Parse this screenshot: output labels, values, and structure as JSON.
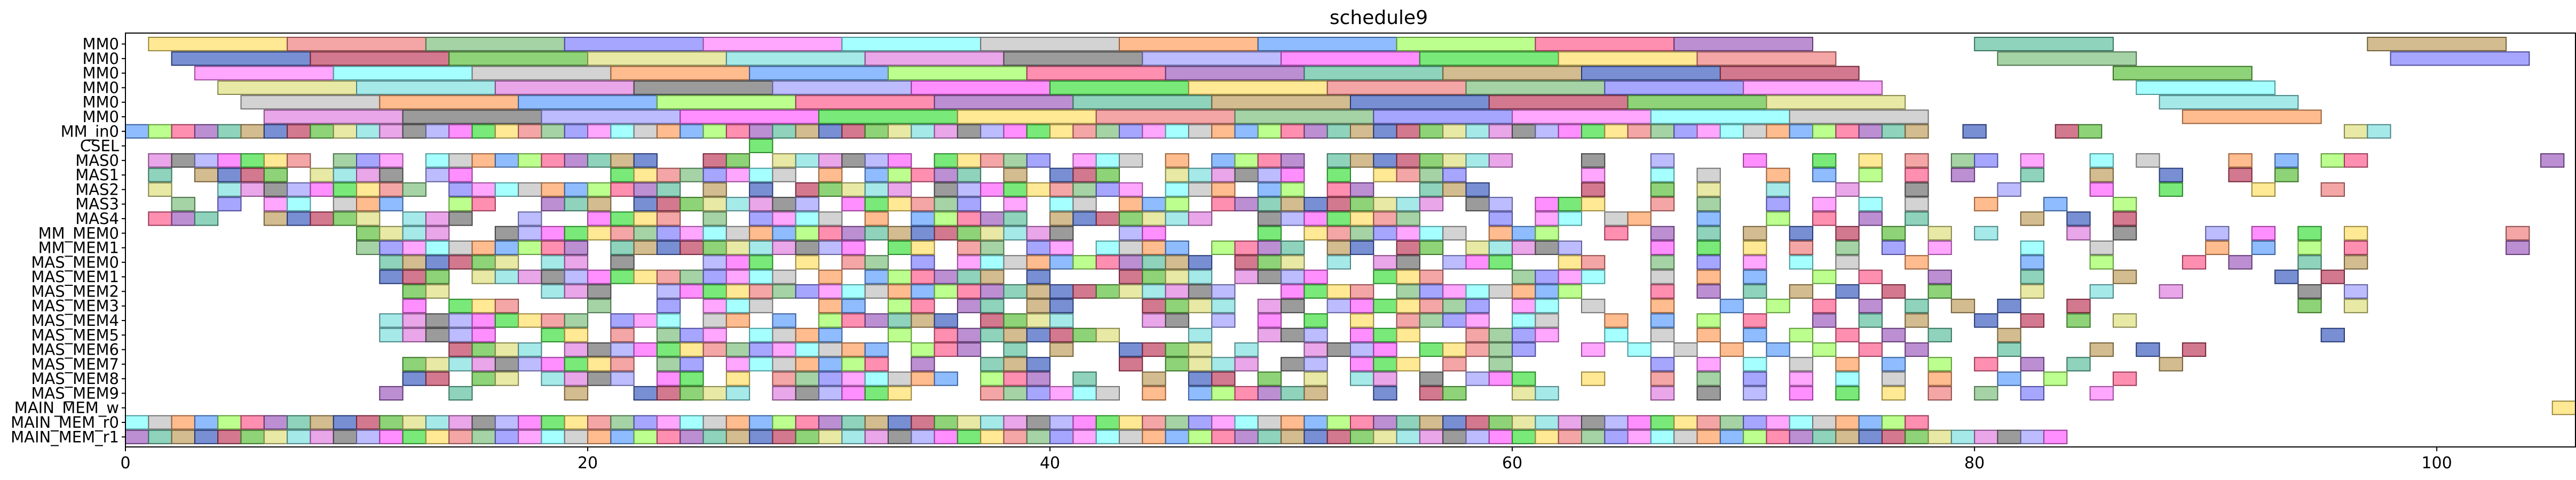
{
  "chart_data": {
    "type": "gantt",
    "title": "schedule9",
    "xlim": [
      0,
      106
    ],
    "xticks": [
      0,
      20,
      40,
      60,
      80,
      100
    ],
    "rows": [
      "MM0",
      "MM0",
      "MM0",
      "MM0",
      "MM0",
      "MM0",
      "MM_in0",
      "CSEL",
      "MAS0",
      "MAS1",
      "MAS2",
      "MAS3",
      "MAS4",
      "MM_MEM0",
      "MM_MEM1",
      "MAS_MEM0",
      "MAS_MEM1",
      "MAS_MEM2",
      "MAS_MEM3",
      "MAS_MEM4",
      "MAS_MEM5",
      "MAS_MEM6",
      "MAS_MEM7",
      "MAS_MEM8",
      "MAS_MEM9",
      "MAIN_MEM_w",
      "MAIN_MEM_r0",
      "MAIN_MEM_r1"
    ],
    "palette": [
      "#ffe066",
      "#f08080",
      "#80c080",
      "#8080ff",
      "#ff80ff",
      "#80ffff",
      "#c0c0c0",
      "#ffa060",
      "#60a0ff",
      "#a0ff60",
      "#ff6090",
      "#a060c0",
      "#60c0a0",
      "#c0a060",
      "#4060c0",
      "#c04060",
      "#60c040",
      "#e0e080",
      "#80e0e0",
      "#e080e0",
      "#707070",
      "#a0a0ff",
      "#ff60ff",
      "#40e040"
    ],
    "tasks": [
      [
        0,
        1,
        7
      ],
      [
        0,
        7,
        13
      ],
      [
        0,
        13,
        19
      ],
      [
        0,
        19,
        25
      ],
      [
        0,
        25,
        31
      ],
      [
        0,
        31,
        37
      ],
      [
        0,
        37,
        43
      ],
      [
        0,
        43,
        49
      ],
      [
        0,
        49,
        55
      ],
      [
        0,
        55,
        61
      ],
      [
        0,
        61,
        67
      ],
      [
        0,
        67,
        73
      ],
      [
        0,
        80,
        86
      ],
      [
        0,
        97,
        103
      ],
      [
        1,
        2,
        8
      ],
      [
        1,
        8,
        14
      ],
      [
        1,
        14,
        20
      ],
      [
        1,
        20,
        26
      ],
      [
        1,
        26,
        32
      ],
      [
        1,
        32,
        38
      ],
      [
        1,
        38,
        44
      ],
      [
        1,
        44,
        50
      ],
      [
        1,
        50,
        56
      ],
      [
        1,
        56,
        62
      ],
      [
        1,
        62,
        68
      ],
      [
        1,
        68,
        74
      ],
      [
        1,
        81,
        87
      ],
      [
        1,
        98,
        104
      ],
      [
        2,
        3,
        9
      ],
      [
        2,
        9,
        15
      ],
      [
        2,
        15,
        21
      ],
      [
        2,
        21,
        27
      ],
      [
        2,
        27,
        33
      ],
      [
        2,
        33,
        39
      ],
      [
        2,
        39,
        45
      ],
      [
        2,
        45,
        51
      ],
      [
        2,
        51,
        57
      ],
      [
        2,
        57,
        63
      ],
      [
        2,
        63,
        69
      ],
      [
        2,
        69,
        75
      ],
      [
        2,
        86,
        92
      ],
      [
        3,
        4,
        10
      ],
      [
        3,
        10,
        16
      ],
      [
        3,
        16,
        22
      ],
      [
        3,
        22,
        28
      ],
      [
        3,
        28,
        34
      ],
      [
        3,
        34,
        40
      ],
      [
        3,
        40,
        46
      ],
      [
        3,
        46,
        52
      ],
      [
        3,
        52,
        58
      ],
      [
        3,
        58,
        64
      ],
      [
        3,
        64,
        70
      ],
      [
        3,
        70,
        76
      ],
      [
        3,
        87,
        93
      ],
      [
        4,
        5,
        11
      ],
      [
        4,
        11,
        17
      ],
      [
        4,
        17,
        23
      ],
      [
        4,
        23,
        29
      ],
      [
        4,
        29,
        35
      ],
      [
        4,
        35,
        41
      ],
      [
        4,
        41,
        47
      ],
      [
        4,
        47,
        53
      ],
      [
        4,
        53,
        59
      ],
      [
        4,
        59,
        65
      ],
      [
        4,
        65,
        71
      ],
      [
        4,
        71,
        77
      ],
      [
        4,
        88,
        94
      ],
      [
        5,
        6,
        12
      ],
      [
        5,
        12,
        18
      ],
      [
        5,
        18,
        24
      ],
      [
        5,
        24,
        30
      ],
      [
        5,
        30,
        36
      ],
      [
        5,
        36,
        42
      ],
      [
        5,
        42,
        48
      ],
      [
        5,
        48,
        54
      ],
      [
        5,
        54,
        60
      ],
      [
        5,
        60,
        66
      ],
      [
        5,
        66,
        72
      ],
      [
        5,
        72,
        78
      ],
      [
        5,
        89,
        95
      ]
    ],
    "dense_rows": [
      {
        "row": 6,
        "from": 0,
        "to": 78,
        "extra": [
          79.5,
          83.5,
          84.5,
          96,
          97
        ]
      },
      {
        "row": 8,
        "from": 1,
        "to": 60,
        "extra": [
          63,
          66,
          70,
          73,
          75,
          77,
          79,
          80,
          82,
          85,
          87,
          91,
          93,
          95,
          96,
          104.5
        ]
      },
      {
        "row": 9,
        "from": 1,
        "to": 58,
        "extra": [
          63,
          66,
          68,
          71,
          73,
          75,
          77,
          79,
          82,
          85,
          88,
          91,
          93
        ]
      },
      {
        "row": 10,
        "from": 1,
        "to": 60,
        "extra": [
          63,
          66,
          68,
          71,
          74,
          77,
          81,
          85,
          88,
          92,
          95
        ]
      },
      {
        "row": 11,
        "from": 1,
        "to": 64,
        "extra": [
          66,
          68,
          71,
          73,
          75,
          77,
          80,
          83,
          86
        ]
      },
      {
        "row": 12,
        "from": 1,
        "to": 66,
        "extra": [
          68,
          71,
          73,
          75,
          77,
          82,
          84,
          86
        ]
      },
      {
        "row": 13,
        "from": 10,
        "to": 62,
        "extra": [
          64,
          66,
          68,
          70,
          72,
          74,
          76,
          78,
          80,
          84,
          86,
          90,
          92,
          94,
          96,
          103
        ]
      },
      {
        "row": 14,
        "from": 10,
        "to": 64,
        "extra": [
          66,
          68,
          70,
          72,
          74,
          76,
          78,
          82,
          85,
          90,
          92,
          94,
          96,
          103
        ]
      },
      {
        "row": 15,
        "from": 11,
        "to": 64,
        "extra": [
          66,
          68,
          70,
          72,
          74,
          77,
          82,
          85,
          89,
          91,
          94,
          96
        ]
      },
      {
        "row": 16,
        "from": 11,
        "to": 64,
        "extra": [
          66,
          68,
          70,
          73,
          75,
          78,
          82,
          86,
          93,
          95
        ]
      },
      {
        "row": 17,
        "from": 11,
        "to": 64,
        "extra": [
          66,
          68,
          70,
          72,
          74,
          76,
          78,
          82,
          85,
          88,
          94,
          96
        ]
      },
      {
        "row": 18,
        "from": 12,
        "to": 64,
        "extra": [
          66,
          69,
          71,
          73,
          75,
          77,
          79,
          81,
          84,
          94,
          96
        ]
      },
      {
        "row": 19,
        "from": 11,
        "to": 62,
        "extra": [
          64,
          66,
          68,
          70,
          73,
          75,
          77,
          80,
          82,
          84,
          86
        ]
      },
      {
        "row": 20,
        "from": 11,
        "to": 62,
        "extra": [
          64,
          66,
          68,
          70,
          72,
          74,
          76,
          78,
          81,
          95
        ]
      },
      {
        "row": 21,
        "from": 14,
        "to": 62,
        "extra": [
          63,
          65,
          67,
          69,
          71,
          73,
          75,
          77,
          81,
          85,
          87,
          89
        ]
      },
      {
        "row": 22,
        "from": 11,
        "to": 64,
        "extra": [
          66,
          68,
          70,
          72,
          74,
          76,
          78,
          80,
          82,
          84,
          88
        ]
      },
      {
        "row": 23,
        "from": 11,
        "to": 64,
        "extra": [
          66,
          68,
          70,
          72,
          74,
          76,
          78,
          81,
          83,
          86
        ]
      },
      {
        "row": 24,
        "from": 11,
        "to": 64,
        "extra": [
          66,
          68,
          70,
          72,
          74,
          76,
          78,
          80,
          82,
          85
        ]
      },
      {
        "row": 26,
        "from": 0,
        "to": 78,
        "extra": []
      },
      {
        "row": 27,
        "from": 0,
        "to": 84,
        "extra": []
      }
    ],
    "single_tasks": [
      [
        7,
        27,
        28
      ],
      [
        25,
        105,
        106
      ]
    ]
  }
}
